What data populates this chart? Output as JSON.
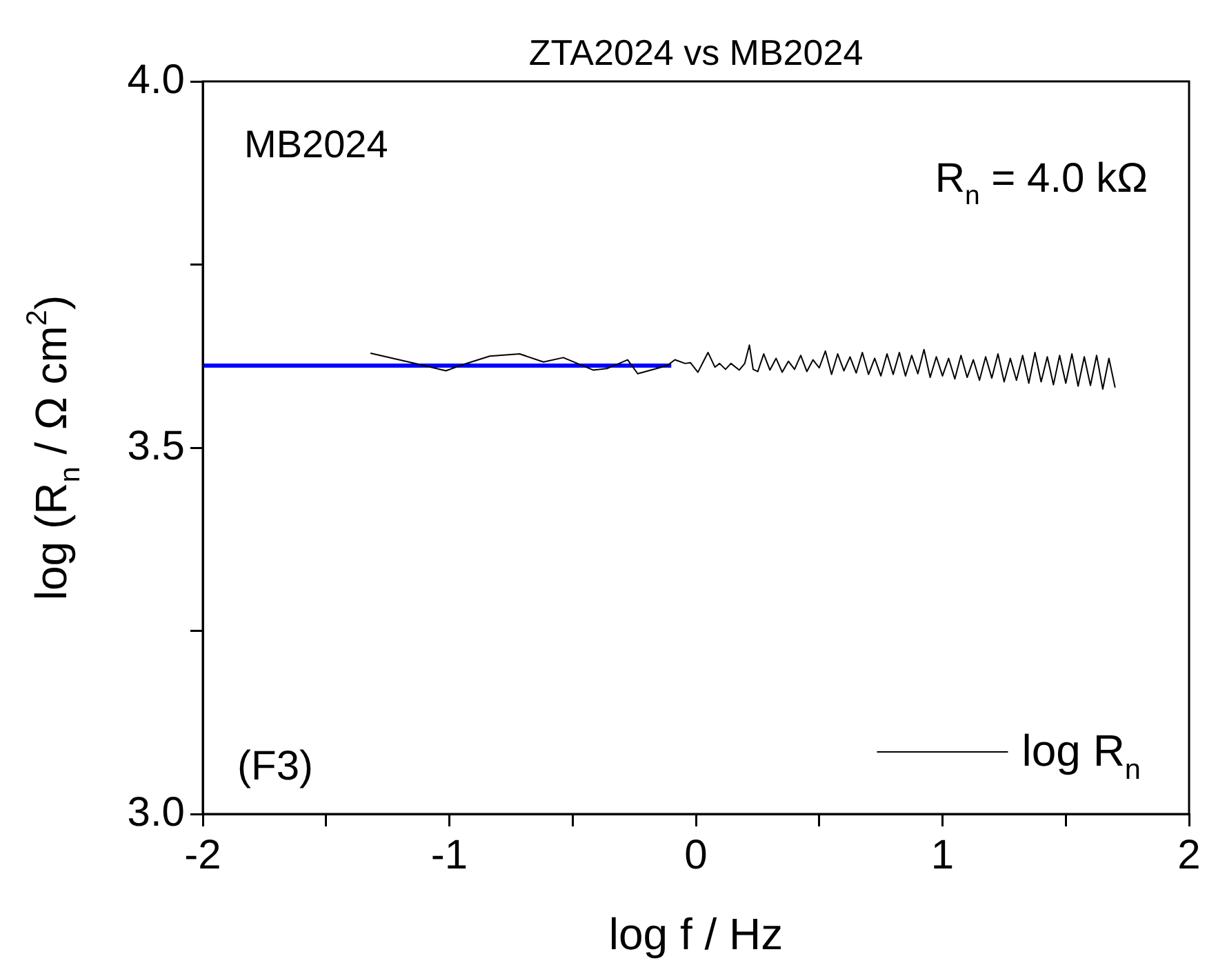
{
  "chart_data": {
    "type": "line",
    "title": "ZTA2024 vs MB2024",
    "xlabel": "log f / Hz",
    "ylabel": "log (R$_{n}$ / Ω cm$^{2}$)",
    "annotations": [
      "MB2024",
      "R$_{n}$ = 4.0 kΩ",
      "(F3)"
    ],
    "xlim": [
      -2,
      2
    ],
    "xticks": [
      -2,
      {
        "value": -1.5,
        "label": null
      },
      -1,
      {
        "value": -0.5,
        "label": null
      },
      0,
      {
        "value": 0.5,
        "label": null
      },
      1,
      {
        "value": 1.5,
        "label": null
      },
      2
    ],
    "ylim": [
      3,
      4
    ],
    "yticks": [
      {
        "value": 3,
        "label": "3.0"
      },
      {
        "value": 3.25,
        "label": null
      },
      {
        "value": 3.5,
        "label": "3.5"
      },
      {
        "value": 3.75,
        "label": null
      },
      {
        "value": 4,
        "label": "4.0"
      }
    ],
    "legend": "bottom right",
    "series": [
      {
        "name": "log R$_{n}$",
        "color": "#000000",
        "x": [
          -1.32,
          -1.125,
          -1.014,
          -0.94,
          -0.836,
          -0.715,
          -0.618,
          -0.538,
          -0.417,
          -0.361,
          -0.277,
          -0.236,
          -0.117,
          -0.085,
          -0.044,
          -0.022,
          0.008,
          0.049,
          0.077,
          0.096,
          0.12,
          0.142,
          0.176,
          0.198,
          0.217,
          0.232,
          0.251,
          0.275,
          0.3,
          0.325,
          0.35,
          0.375,
          0.4,
          0.425,
          0.45,
          0.475,
          0.5,
          0.525,
          0.55,
          0.575,
          0.6,
          0.625,
          0.65,
          0.675,
          0.7,
          0.725,
          0.75,
          0.775,
          0.8,
          0.825,
          0.85,
          0.875,
          0.9,
          0.925,
          0.95,
          0.975,
          1.0,
          1.025,
          1.05,
          1.075,
          1.1,
          1.125,
          1.15,
          1.175,
          1.2,
          1.225,
          1.25,
          1.275,
          1.3,
          1.325,
          1.35,
          1.375,
          1.4,
          1.425,
          1.45,
          1.475,
          1.5,
          1.525,
          1.55,
          1.575,
          1.6,
          1.625,
          1.65,
          1.675,
          1.7
        ],
        "values": [
          3.629,
          3.614,
          3.605,
          3.614,
          3.625,
          3.628,
          3.617,
          3.623,
          3.606,
          3.608,
          3.62,
          3.601,
          3.612,
          3.62,
          3.615,
          3.616,
          3.603,
          3.63,
          3.61,
          3.615,
          3.607,
          3.615,
          3.606,
          3.615,
          3.64,
          3.607,
          3.604,
          3.628,
          3.606,
          3.622,
          3.603,
          3.618,
          3.607,
          3.626,
          3.604,
          3.62,
          3.609,
          3.632,
          3.6,
          3.628,
          3.605,
          3.624,
          3.602,
          3.63,
          3.6,
          3.622,
          3.598,
          3.628,
          3.6,
          3.63,
          3.598,
          3.626,
          3.601,
          3.634,
          3.596,
          3.624,
          3.598,
          3.622,
          3.594,
          3.626,
          3.596,
          3.62,
          3.592,
          3.624,
          3.595,
          3.628,
          3.59,
          3.622,
          3.592,
          3.626,
          3.588,
          3.63,
          3.59,
          3.624,
          3.586,
          3.626,
          3.588,
          3.628,
          3.584,
          3.624,
          3.585,
          3.626,
          3.58,
          3.622,
          3.582
        ]
      },
      {
        "color": "#0000ff",
        "x": [
          -2,
          -0.1
        ],
        "values": [
          3.612,
          3.612
        ]
      }
    ]
  }
}
